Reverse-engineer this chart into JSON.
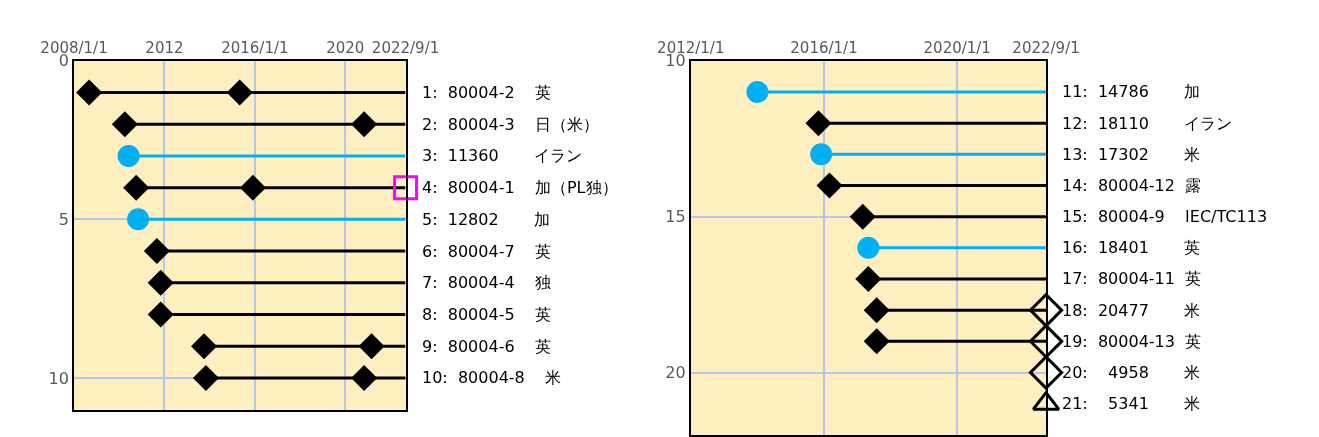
{
  "chart_data": [
    {
      "type": "line",
      "xlim": [
        "2008-01-01",
        "2022-09-01"
      ],
      "ylim": [
        11,
        0
      ],
      "grid": true,
      "xticks": [
        {
          "value": "2008-01-01",
          "label": "2008/1/1"
        },
        {
          "value": "2012-01-01",
          "label": "2012"
        },
        {
          "value": "2016-01-01",
          "label": "2016/1/1"
        },
        {
          "value": "2020-01-01",
          "label": "2020"
        },
        {
          "value": "2022-09-01",
          "label": "2022/9/1"
        }
      ],
      "yticks": [
        0,
        5,
        10
      ],
      "series": [
        {
          "type": "line",
          "marker": "diamond",
          "color": "#000000",
          "x": [
            "2008-09",
            "2015-05",
            "2022-09-01"
          ],
          "values": [
            1,
            1,
            1
          ]
        },
        {
          "type": "line",
          "marker": "diamond",
          "color": "#000000",
          "x": [
            "2010-04",
            "2020-11",
            "2022-09-01"
          ],
          "values": [
            2,
            2,
            2
          ]
        },
        {
          "type": "line",
          "marker": "circle",
          "color": "#00b0f0",
          "x": [
            "2010-06",
            "2022-09-01"
          ],
          "values": [
            3,
            3
          ]
        },
        {
          "type": "line",
          "marker": "diamond",
          "color": "#000000",
          "x": [
            "2010-10",
            "2015-12",
            "2022-09-01"
          ],
          "values": [
            4,
            4,
            4
          ]
        },
        {
          "type": "line",
          "marker": "circle",
          "color": "#00b0f0",
          "x": [
            "2010-11",
            "2022-09-01"
          ],
          "values": [
            5,
            5
          ]
        },
        {
          "type": "line",
          "marker": "diamond",
          "color": "#000000",
          "x": [
            "2011-09",
            "2022-09-01"
          ],
          "values": [
            6,
            6
          ]
        },
        {
          "type": "line",
          "marker": "diamond",
          "color": "#000000",
          "x": [
            "2011-11",
            "2022-09-01"
          ],
          "values": [
            7,
            7
          ]
        },
        {
          "type": "line",
          "marker": "diamond",
          "color": "#000000",
          "x": [
            "2011-11",
            "2022-09-01"
          ],
          "values": [
            8,
            8
          ]
        },
        {
          "type": "line",
          "marker": "diamond",
          "color": "#000000",
          "x": [
            "2013-10",
            "2021-03",
            "2022-09-01"
          ],
          "values": [
            9,
            9,
            9
          ]
        },
        {
          "type": "line",
          "marker": "diamond",
          "color": "#000000",
          "x": [
            "2013-11",
            "2020-11",
            "2022-09-01"
          ],
          "values": [
            10,
            10,
            10
          ]
        },
        {
          "type": "scatter",
          "marker": "square",
          "color": "#ff00ff",
          "x": [
            "2022-09-01"
          ],
          "values": [
            4
          ]
        }
      ],
      "annotations": [
        {
          "text": "1:  80004-2    英",
          "x": "2022-09-01",
          "y": 1
        },
        {
          "text": "2:  80004-3    日（米）",
          "x": "2022-09-01",
          "y": 2
        },
        {
          "text": "3:  11360       イラン",
          "x": "2022-09-01",
          "y": 3
        },
        {
          "text": "4:  80004-1    加（PL独）",
          "x": "2022-09-01",
          "y": 4
        },
        {
          "text": "5:  12802       加",
          "x": "2022-09-01",
          "y": 5
        },
        {
          "text": "6:  80004-7    英",
          "x": "2022-09-01",
          "y": 6
        },
        {
          "text": "7:  80004-4    独",
          "x": "2022-09-01",
          "y": 7
        },
        {
          "text": "8:  80004-5    英",
          "x": "2022-09-01",
          "y": 8
        },
        {
          "text": "9:  80004-6    英",
          "x": "2022-09-01",
          "y": 9
        },
        {
          "text": "10:  80004-8    米",
          "x": "2022-09-01",
          "y": 10
        }
      ]
    },
    {
      "type": "line",
      "xlim": [
        "2012-01-01",
        "2022-09-01"
      ],
      "ylim": [
        22,
        10
      ],
      "grid": true,
      "xticks": [
        {
          "value": "2012-01-01",
          "label": "2012/1/1"
        },
        {
          "value": "2016-01-01",
          "label": "2016/1/1"
        },
        {
          "value": "2020-01-01",
          "label": "2020/1/1"
        },
        {
          "value": "2022-09-01",
          "label": "2022/9/1"
        }
      ],
      "yticks": [
        10,
        15,
        20
      ],
      "series": [
        {
          "type": "line",
          "marker": "circle",
          "color": "#00b0f0",
          "x": [
            "2014-01",
            "2022-09-01"
          ],
          "values": [
            11,
            11
          ]
        },
        {
          "type": "line",
          "marker": "diamond",
          "color": "#000000",
          "x": [
            "2015-11",
            "2022-09-01"
          ],
          "values": [
            12,
            12
          ]
        },
        {
          "type": "line",
          "marker": "circle",
          "color": "#00b0f0",
          "x": [
            "2015-12",
            "2022-09-01"
          ],
          "values": [
            13,
            13
          ]
        },
        {
          "type": "line",
          "marker": "diamond",
          "color": "#000000",
          "x": [
            "2016-03",
            "2022-09-01"
          ],
          "values": [
            14,
            14
          ]
        },
        {
          "type": "line",
          "marker": "diamond",
          "color": "#000000",
          "x": [
            "2017-03",
            "2022-09-01"
          ],
          "values": [
            15,
            15
          ]
        },
        {
          "type": "line",
          "marker": "circle",
          "color": "#00b0f0",
          "x": [
            "2017-05",
            "2022-09-01"
          ],
          "values": [
            16,
            16
          ]
        },
        {
          "type": "line",
          "marker": "diamond",
          "color": "#000000",
          "x": [
            "2017-05",
            "2022-09-01"
          ],
          "values": [
            17,
            17
          ]
        },
        {
          "type": "line",
          "marker": "diamond",
          "color": "#000000",
          "x": [
            "2017-08",
            "2022-09-01"
          ],
          "values": [
            18,
            18
          ]
        },
        {
          "type": "line",
          "marker": "diamond",
          "color": "#000000",
          "x": [
            "2017-08",
            "2022-09-01"
          ],
          "values": [
            19,
            19
          ]
        },
        {
          "type": "scatter",
          "marker": "diamond",
          "color": "#000000",
          "x": [
            "2022-09-01",
            "2022-09-01",
            "2022-09-01"
          ],
          "values": [
            18,
            19,
            20
          ]
        },
        {
          "type": "scatter",
          "marker": "triangle",
          "color": "#000000",
          "x": [
            "2022-09-01"
          ],
          "values": [
            21
          ]
        }
      ],
      "annotations": [
        {
          "text": "11:  14786       加",
          "x": "2022-09-01",
          "y": 11
        },
        {
          "text": "12:  18110       イラン",
          "x": "2022-09-01",
          "y": 12
        },
        {
          "text": "13:  17302       米",
          "x": "2022-09-01",
          "y": 13
        },
        {
          "text": "14:  80004-12  露",
          "x": "2022-09-01",
          "y": 14
        },
        {
          "text": "15:  80004-9    IEC/TC113",
          "x": "2022-09-01",
          "y": 15
        },
        {
          "text": "16:  18401       英",
          "x": "2022-09-01",
          "y": 16
        },
        {
          "text": "17:  80004-11  英",
          "x": "2022-09-01",
          "y": 17
        },
        {
          "text": "18:  20477       米",
          "x": "2022-09-01",
          "y": 18
        },
        {
          "text": "19:  80004-13  英",
          "x": "2022-09-01",
          "y": 19
        },
        {
          "text": "20:    4958       米",
          "x": "2022-09-01",
          "y": 20
        },
        {
          "text": "21:    5341       米",
          "x": "2022-09-01",
          "y": 21
        }
      ]
    }
  ]
}
